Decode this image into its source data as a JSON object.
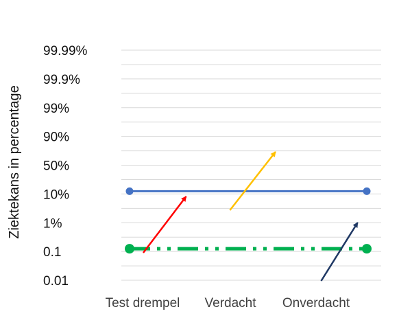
{
  "chart_data": {
    "type": "line",
    "ylabel": "Ziektekans in percentage",
    "y_ticks": [
      "0.01",
      "0.1",
      "1%",
      "10%",
      "50%",
      "90%",
      "99%",
      "99.9%",
      "99.99%"
    ],
    "categories": [
      "Test drempel",
      "Verdacht",
      "Onverdacht"
    ],
    "grid": true,
    "series": [
      {
        "color": "#4472c4",
        "style": "solid",
        "markers": true,
        "points": [
          {
            "x": 0.0,
            "y": "10%"
          },
          {
            "x": 2.6,
            "y": "10%"
          }
        ]
      },
      {
        "color": "#00b050",
        "style": "dash-dot-dot",
        "markers": true,
        "points": [
          {
            "x": 0.0,
            "y": "0.1"
          },
          {
            "x": 2.6,
            "y": "0.1"
          }
        ]
      }
    ],
    "arrows": [
      {
        "color": "#ff0000",
        "from": {
          "x": 0.15,
          "y": "0.1"
        },
        "to": {
          "x": 0.62,
          "y": "10%"
        }
      },
      {
        "color": "#ffc000",
        "from": {
          "x": 1.1,
          "y": "1% to 10%"
        },
        "to": {
          "x": 1.6,
          "y": "50%"
        }
      },
      {
        "color": "#1f3864",
        "from": {
          "x": 2.1,
          "y": "below 0.01"
        },
        "to": {
          "x": 2.5,
          "y": "1%"
        }
      }
    ]
  }
}
